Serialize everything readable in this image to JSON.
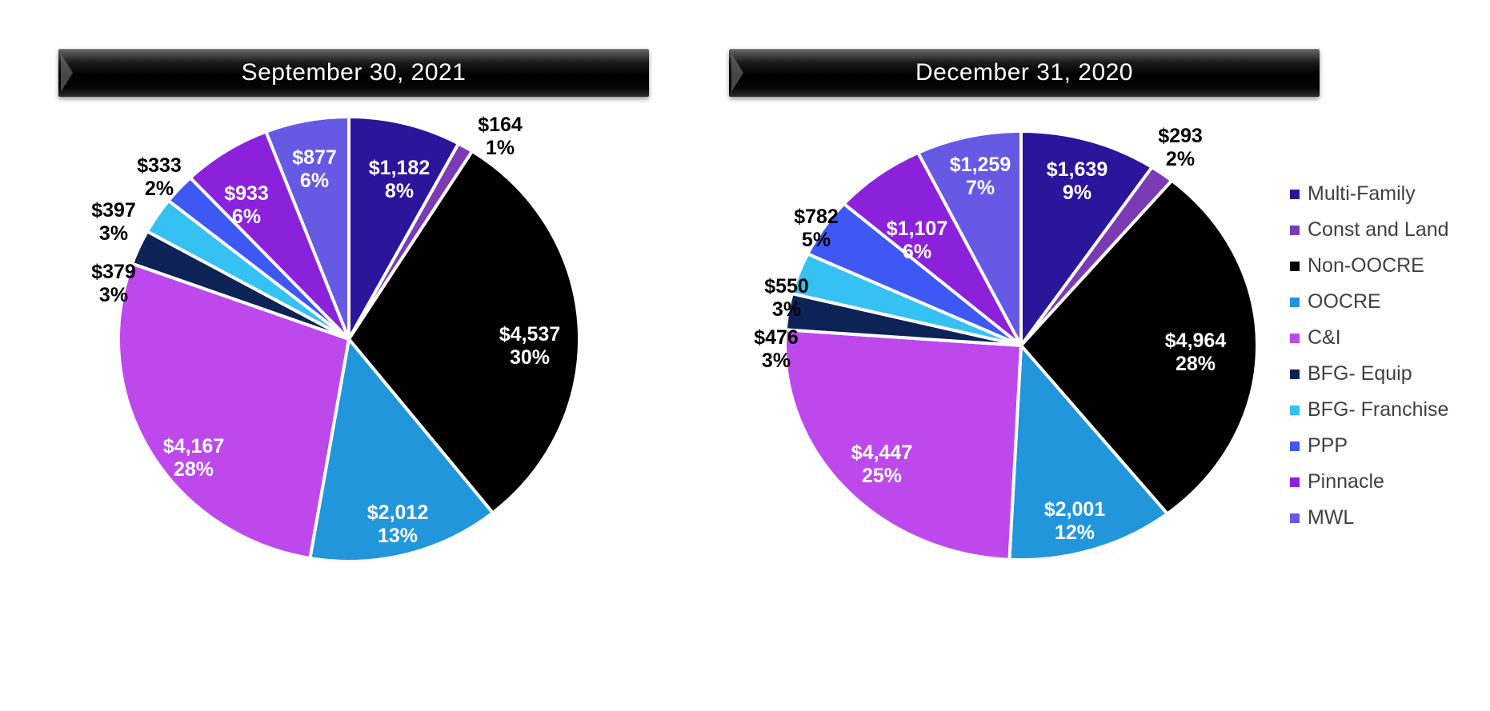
{
  "titles": {
    "left": "September 30, 2021",
    "right": "December 31, 2020"
  },
  "legend": {
    "position": "right",
    "items": [
      {
        "label": "Multi-Family",
        "color": "#2B159B"
      },
      {
        "label": "Const and Land",
        "color": "#7A3BB4"
      },
      {
        "label": "Non-OOCRE",
        "color": "#010101"
      },
      {
        "label": "OOCRE",
        "color": "#2196DB"
      },
      {
        "label": "C&I",
        "color": "#BD49EC"
      },
      {
        "label": "BFG- Equip",
        "color": "#0D2355"
      },
      {
        "label": "BFG- Franchise",
        "color": "#36C1F3"
      },
      {
        "label": "PPP",
        "color": "#3D58F3"
      },
      {
        "label": "Pinnacle",
        "color": "#8C21DB"
      },
      {
        "label": "MWL",
        "color": "#6659E4"
      }
    ]
  },
  "chart_data": [
    {
      "type": "pie",
      "title": "September 30, 2021",
      "start_angle": "top, clockwise",
      "categories": [
        "Multi-Family",
        "Const and Land",
        "Non-OOCRE",
        "OOCRE",
        "C&I",
        "BFG- Equip",
        "BFG- Franchise",
        "PPP",
        "Pinnacle",
        "MWL"
      ],
      "values": [
        1182,
        164,
        4537,
        2012,
        4167,
        379,
        397,
        333,
        933,
        877
      ],
      "pct": [
        8,
        1,
        30,
        13,
        28,
        3,
        3,
        2,
        6,
        6
      ],
      "value_labels": [
        "$1,182",
        "$164",
        "$4,537",
        "$2,012",
        "$4,167",
        "$379",
        "$397",
        "$333",
        "$933",
        "$877"
      ],
      "pct_labels": [
        "8%",
        "1%",
        "30%",
        "13%",
        "28%",
        "3%",
        "3%",
        "2%",
        "6%",
        "6%"
      ],
      "colors": [
        "#2B159B",
        "#7A3BB4",
        "#010101",
        "#2196DB",
        "#BD49EC",
        "#0D2355",
        "#36C1F3",
        "#3D58F3",
        "#8C21DB",
        "#6659E4"
      ]
    },
    {
      "type": "pie",
      "title": "December 31, 2020",
      "start_angle": "top, clockwise",
      "categories": [
        "Multi-Family",
        "Const and Land",
        "Non-OOCRE",
        "OOCRE",
        "C&I",
        "BFG- Equip",
        "BFG- Franchise",
        "PPP",
        "Pinnacle",
        "MWL"
      ],
      "values": [
        1639,
        293,
        4964,
        2001,
        4447,
        476,
        550,
        782,
        1107,
        1259
      ],
      "pct": [
        9,
        2,
        28,
        12,
        25,
        3,
        3,
        5,
        6,
        7
      ],
      "value_labels": [
        "$1,639",
        "$293",
        "$4,964",
        "$2,001",
        "$4,447",
        "$476",
        "$550",
        "$782",
        "$1,107",
        "$1,259"
      ],
      "pct_labels": [
        "9%",
        "2%",
        "28%",
        "12%",
        "25%",
        "3%",
        "3%",
        "5%",
        "6%",
        "7%"
      ],
      "colors": [
        "#2B159B",
        "#7A3BB4",
        "#010101",
        "#2196DB",
        "#BD49EC",
        "#0D2355",
        "#36C1F3",
        "#3D58F3",
        "#8C21DB",
        "#6659E4"
      ]
    }
  ]
}
